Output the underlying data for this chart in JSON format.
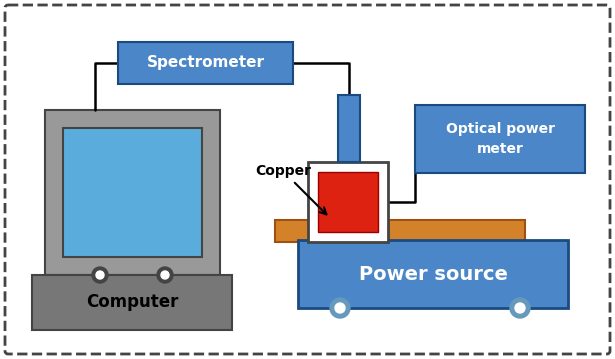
{
  "bg_color": "#ffffff",
  "border_color": "#444444",
  "box_blue": "#4a86c8",
  "box_blue_dark": "#1a4a80",
  "red_color": "#dd2211",
  "orange_color": "#d4822a",
  "gray_body": "#999999",
  "gray_dark": "#444444",
  "screen_blue": "#5aacdc",
  "label_color": "#000000",
  "white": "#ffffff",
  "wheel_blue": "#6699bb",
  "texts": {
    "spectrometer": "Spectrometer",
    "optical_power_meter": "Optical power\nmeter",
    "power_source": "Power source",
    "computer": "Computer",
    "copper": "Copper"
  }
}
